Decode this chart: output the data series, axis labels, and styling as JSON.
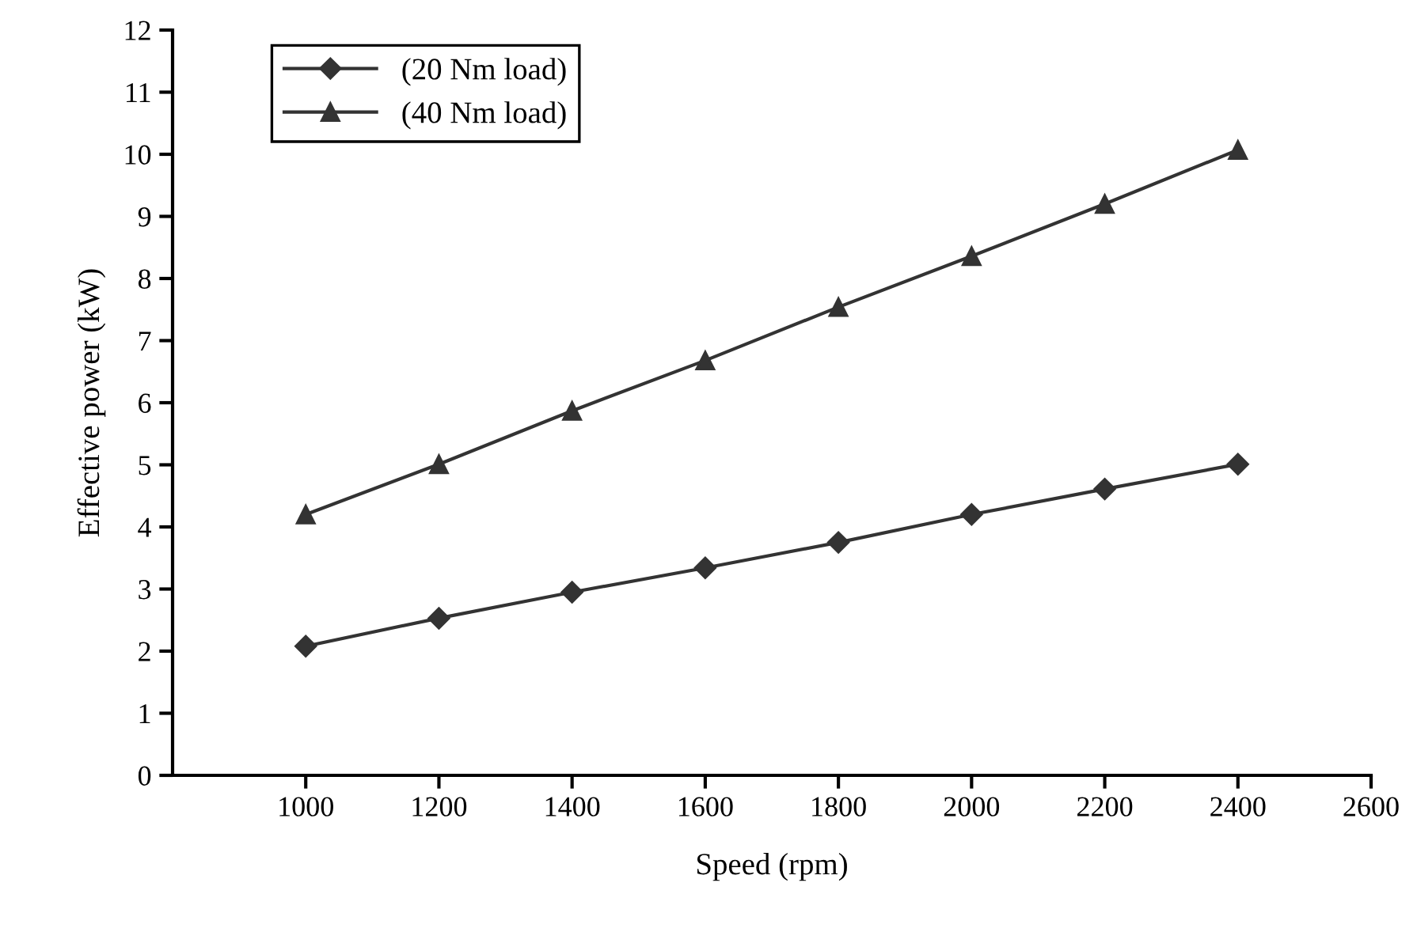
{
  "chart_data": {
    "type": "line",
    "xlabel": "Speed (rpm)",
    "ylabel": "Effective power (kW)",
    "x": [
      1000,
      1200,
      1400,
      1600,
      1800,
      2000,
      2200,
      2400
    ],
    "series": [
      {
        "name": "(20 Nm load)",
        "color": "#333333",
        "marker": "diamond",
        "values": [
          2.08,
          2.53,
          2.95,
          3.34,
          3.75,
          4.2,
          4.61,
          5.01
        ]
      },
      {
        "name": "(40 Nm load)",
        "color": "#333333",
        "marker": "triangle",
        "values": [
          4.2,
          5.01,
          5.87,
          6.68,
          7.54,
          8.36,
          9.2,
          10.07
        ]
      }
    ],
    "xlim": [
      800,
      2600
    ],
    "xticks": [
      1000,
      1200,
      1400,
      1600,
      1800,
      2000,
      2200,
      2400,
      2600
    ],
    "ylim": [
      0,
      12
    ],
    "yticks": [
      0,
      1,
      2,
      3,
      4,
      5,
      6,
      7,
      8,
      9,
      10,
      11,
      12
    ],
    "grid": false,
    "legend": "top left",
    "line_style": "solid"
  }
}
